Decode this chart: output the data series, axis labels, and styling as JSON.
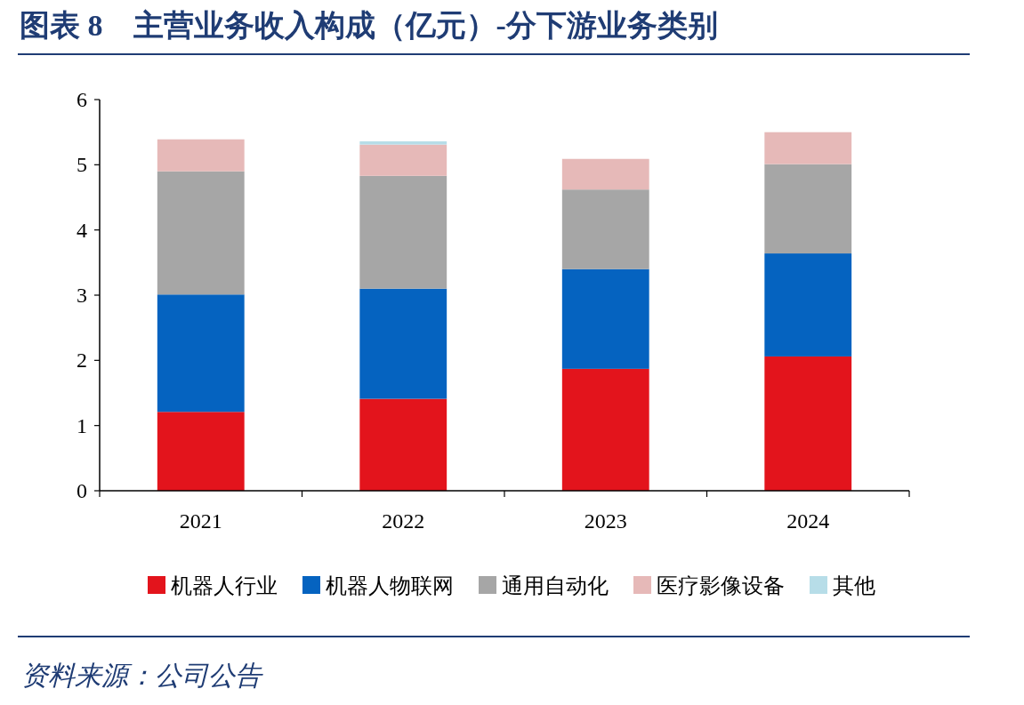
{
  "chart_data": {
    "type": "bar",
    "stacked": true,
    "title": "图表 8　主营业务收入构成（亿元）-分下游业务类别",
    "categories": [
      "2021",
      "2022",
      "2023",
      "2024"
    ],
    "series": [
      {
        "name": "机器人行业",
        "color": "#e3141c",
        "values": [
          1.21,
          1.41,
          1.87,
          2.06
        ]
      },
      {
        "name": "机器人物联网",
        "color": "#0563c0",
        "values": [
          1.8,
          1.69,
          1.53,
          1.58
        ]
      },
      {
        "name": "通用自动化",
        "color": "#a6a6a6",
        "values": [
          1.89,
          1.73,
          1.22,
          1.37
        ]
      },
      {
        "name": "医疗影像设备",
        "color": "#e6b9b8",
        "values": [
          0.49,
          0.48,
          0.47,
          0.49
        ]
      },
      {
        "name": "其他",
        "color": "#b7dde8",
        "values": [
          0,
          0.05,
          0,
          0
        ]
      }
    ],
    "ylim": [
      0,
      6
    ],
    "yticks": [
      0,
      1,
      2,
      3,
      4,
      5,
      6
    ],
    "grid": false,
    "legend": "bottom",
    "annotations": [
      "资料来源：公司公告"
    ]
  }
}
